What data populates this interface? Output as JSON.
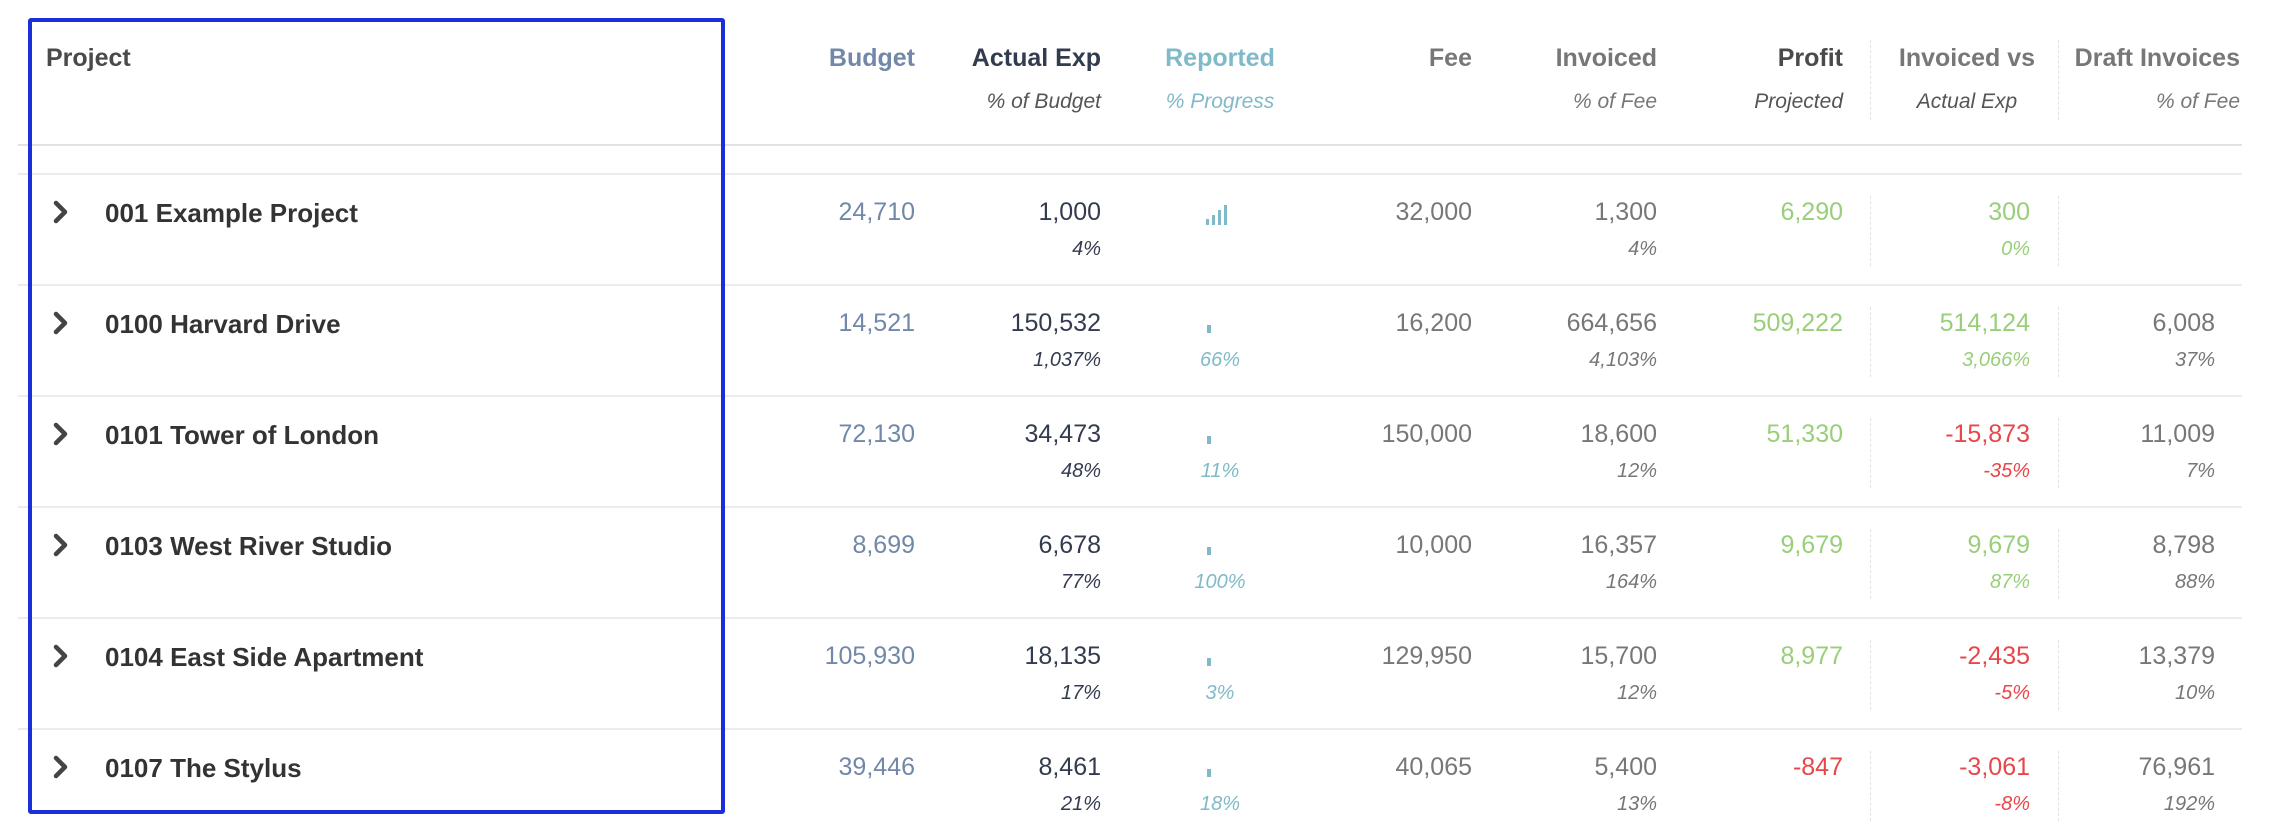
{
  "headers": {
    "project": "Project",
    "budget": "Budget",
    "actual": "Actual Exp",
    "actual_sub": "% of Budget",
    "reported": "Reported",
    "reported_sub": "% Progress",
    "fee": "Fee",
    "invoiced": "Invoiced",
    "invoiced_sub": "% of Fee",
    "profit": "Profit",
    "profit_sub": "Projected",
    "inv_vs": "Invoiced vs",
    "inv_vs_sub": "Actual Exp",
    "draft": "Draft Invoices",
    "draft_sub": "% of Fee"
  },
  "colors": {
    "budget": "#7188a8",
    "reported": "#7fbac8",
    "positive": "#98cf78",
    "negative": "#e8474a",
    "focus_box": "#1b2fd8"
  },
  "rows": [
    {
      "name": "001 Example Project",
      "budget": "24,710",
      "actual": "1,000",
      "actual_pct": "4%",
      "reported_icon": "signal-bars-icon",
      "reported_pct": "",
      "fee": "32,000",
      "invoiced": "1,300",
      "invoiced_pct": "4%",
      "profit": "6,290",
      "profit_sign": "positive",
      "inv_vs": "300",
      "inv_vs_pct": "0%",
      "inv_vs_sign": "positive",
      "draft": "",
      "draft_pct": ""
    },
    {
      "name": "0100 Harvard Drive",
      "budget": "14,521",
      "actual": "150,532",
      "actual_pct": "1,037%",
      "reported_icon": "progress-tick-icon",
      "reported_pct": "66%",
      "fee": "16,200",
      "invoiced": "664,656",
      "invoiced_pct": "4,103%",
      "profit": "509,222",
      "profit_sign": "positive",
      "inv_vs": "514,124",
      "inv_vs_pct": "3,066%",
      "inv_vs_sign": "positive",
      "draft": "6,008",
      "draft_pct": "37%"
    },
    {
      "name": "0101 Tower of London",
      "budget": "72,130",
      "actual": "34,473",
      "actual_pct": "48%",
      "reported_icon": "progress-tick-icon",
      "reported_pct": "11%",
      "fee": "150,000",
      "invoiced": "18,600",
      "invoiced_pct": "12%",
      "profit": "51,330",
      "profit_sign": "positive",
      "inv_vs": "-15,873",
      "inv_vs_pct": "-35%",
      "inv_vs_sign": "negative",
      "draft": "11,009",
      "draft_pct": "7%"
    },
    {
      "name": "0103 West River Studio",
      "budget": "8,699",
      "actual": "6,678",
      "actual_pct": "77%",
      "reported_icon": "progress-tick-icon",
      "reported_pct": "100%",
      "fee": "10,000",
      "invoiced": "16,357",
      "invoiced_pct": "164%",
      "profit": "9,679",
      "profit_sign": "positive",
      "inv_vs": "9,679",
      "inv_vs_pct": "87%",
      "inv_vs_sign": "positive",
      "draft": "8,798",
      "draft_pct": "88%"
    },
    {
      "name": "0104 East Side Apartment",
      "budget": "105,930",
      "actual": "18,135",
      "actual_pct": "17%",
      "reported_icon": "progress-tick-icon",
      "reported_pct": "3%",
      "fee": "129,950",
      "invoiced": "15,700",
      "invoiced_pct": "12%",
      "profit": "8,977",
      "profit_sign": "positive",
      "inv_vs": "-2,435",
      "inv_vs_pct": "-5%",
      "inv_vs_sign": "negative",
      "draft": "13,379",
      "draft_pct": "10%"
    },
    {
      "name": "0107 The Stylus",
      "budget": "39,446",
      "actual": "8,461",
      "actual_pct": "21%",
      "reported_icon": "progress-tick-icon",
      "reported_pct": "18%",
      "fee": "40,065",
      "invoiced": "5,400",
      "invoiced_pct": "13%",
      "profit": "-847",
      "profit_sign": "negative",
      "inv_vs": "-3,061",
      "inv_vs_pct": "-8%",
      "inv_vs_sign": "negative",
      "draft": "76,961",
      "draft_pct": "192%"
    }
  ]
}
